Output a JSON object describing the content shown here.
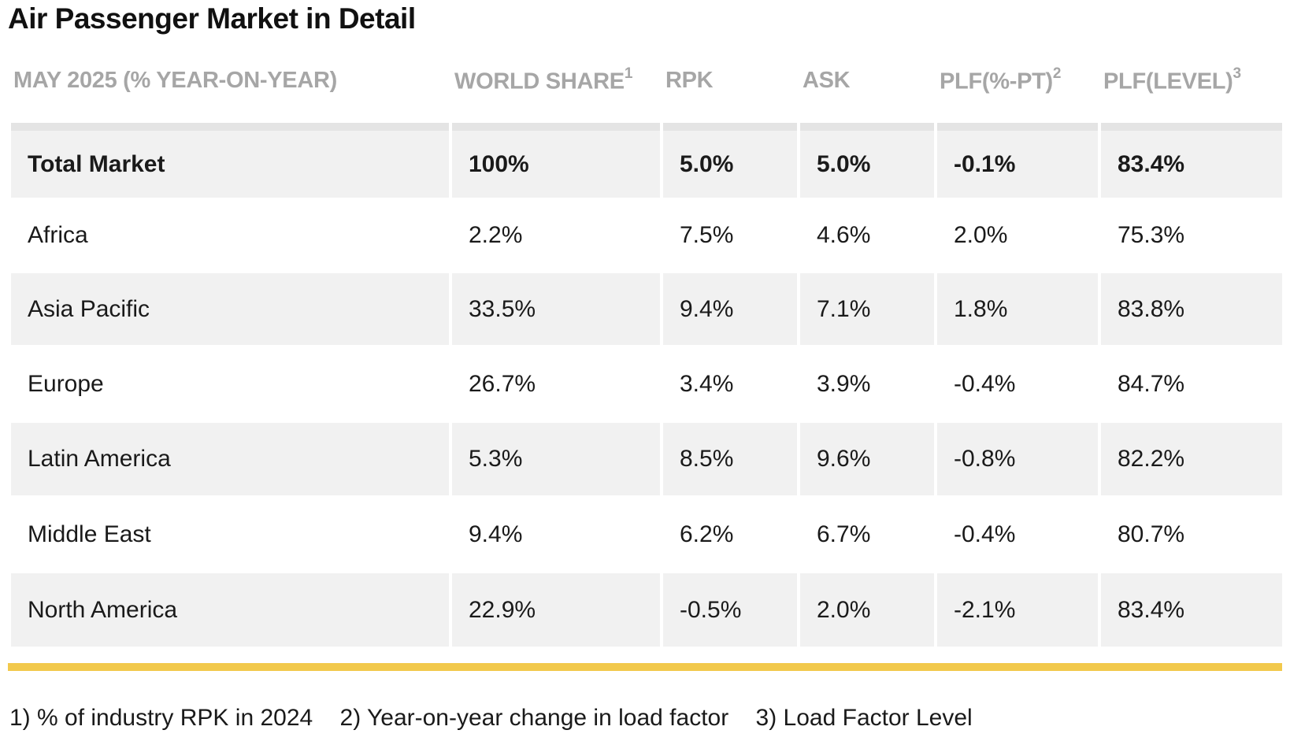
{
  "title": "Air Passenger Market in Detail",
  "header": {
    "col0": "MAY 2025 (% YEAR-ON-YEAR)",
    "col1": "WORLD SHARE",
    "col1_sup": "1",
    "col2": "RPK",
    "col3": "ASK",
    "col4": "PLF(%-PT)",
    "col4_sup": "2",
    "col5": "PLF(LEVEL)",
    "col5_sup": "3"
  },
  "rows": [
    [
      "Total Market",
      "100%",
      "5.0%",
      "5.0%",
      "-0.1%",
      "83.4%"
    ],
    [
      "Africa",
      "2.2%",
      "7.5%",
      "4.6%",
      "2.0%",
      "75.3%"
    ],
    [
      "Asia Pacific",
      "33.5%",
      "9.4%",
      "7.1%",
      "1.8%",
      "83.8%"
    ],
    [
      "Europe",
      "26.7%",
      "3.4%",
      "3.9%",
      "-0.4%",
      "84.7%"
    ],
    [
      "Latin America",
      "5.3%",
      "8.5%",
      "9.6%",
      "-0.8%",
      "82.2%"
    ],
    [
      "Middle East",
      "9.4%",
      "6.2%",
      "6.7%",
      "-0.4%",
      "80.7%"
    ],
    [
      "North America",
      "22.9%",
      "-0.5%",
      "2.0%",
      "-2.1%",
      "83.4%"
    ]
  ],
  "footnotes": [
    "1) % of industry RPK in 2024",
    "2) Year-on-year change in load factor",
    "3) Load Factor Level"
  ],
  "colors": {
    "accent_bar": "#f2c94c",
    "row_alt": "#f1f1f1",
    "header_text": "#a6a6a6"
  }
}
